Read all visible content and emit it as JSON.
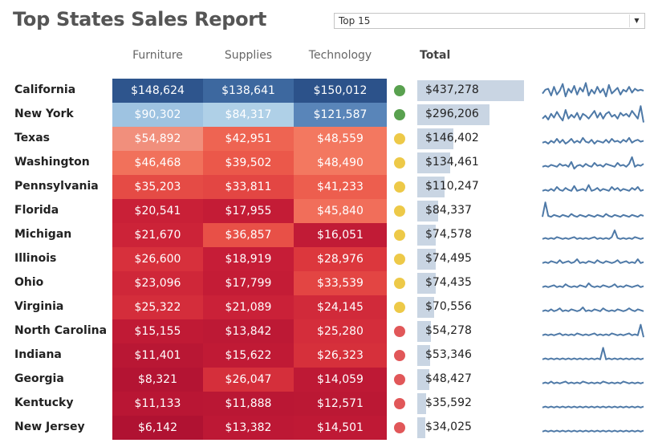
{
  "title": "Top States Sales Report",
  "filter": {
    "selected": "Top 15"
  },
  "headers": {
    "furniture": "Furniture",
    "supplies": "Supplies",
    "technology": "Technology",
    "total": "Total"
  },
  "colors": {
    "title": "#555555",
    "bar": "#c9d5e3",
    "spark": "#4e79a7",
    "dot_green": "#59a14f",
    "dot_yellow": "#edc948",
    "dot_red": "#e15759"
  },
  "rows": [
    {
      "state": "California",
      "furniture": "$148,624",
      "supplies": "$138,641",
      "technology": "$150,012",
      "total": "$437,278",
      "status": "green"
    },
    {
      "state": "New York",
      "furniture": "$90,302",
      "supplies": "$84,317",
      "technology": "$121,587",
      "total": "$296,206",
      "status": "green"
    },
    {
      "state": "Texas",
      "furniture": "$54,892",
      "supplies": "$42,951",
      "technology": "$48,559",
      "total": "$146,402",
      "status": "yellow"
    },
    {
      "state": "Washington",
      "furniture": "$46,468",
      "supplies": "$39,502",
      "technology": "$48,490",
      "total": "$134,461",
      "status": "yellow"
    },
    {
      "state": "Pennsylvania",
      "furniture": "$35,203",
      "supplies": "$33,811",
      "technology": "$41,233",
      "total": "$110,247",
      "status": "yellow"
    },
    {
      "state": "Florida",
      "furniture": "$20,541",
      "supplies": "$17,955",
      "technology": "$45,840",
      "total": "$84,337",
      "status": "yellow"
    },
    {
      "state": "Michigan",
      "furniture": "$21,670",
      "supplies": "$36,857",
      "technology": "$16,051",
      "total": "$74,578",
      "status": "yellow"
    },
    {
      "state": "Illinois",
      "furniture": "$26,600",
      "supplies": "$18,919",
      "technology": "$28,976",
      "total": "$74,495",
      "status": "yellow"
    },
    {
      "state": "Ohio",
      "furniture": "$23,096",
      "supplies": "$17,799",
      "technology": "$33,539",
      "total": "$74,435",
      "status": "yellow"
    },
    {
      "state": "Virginia",
      "furniture": "$25,322",
      "supplies": "$21,089",
      "technology": "$24,145",
      "total": "$70,556",
      "status": "yellow"
    },
    {
      "state": "North Carolina",
      "furniture": "$15,155",
      "supplies": "$13,842",
      "technology": "$25,280",
      "total": "$54,278",
      "status": "red"
    },
    {
      "state": "Indiana",
      "furniture": "$11,401",
      "supplies": "$15,622",
      "technology": "$26,323",
      "total": "$53,346",
      "status": "red"
    },
    {
      "state": "Georgia",
      "furniture": "$8,321",
      "supplies": "$26,047",
      "technology": "$14,059",
      "total": "$48,427",
      "status": "red"
    },
    {
      "state": "Kentucky",
      "furniture": "$11,133",
      "supplies": "$11,888",
      "technology": "$12,571",
      "total": "$35,592",
      "status": "red"
    },
    {
      "state": "New Jersey",
      "furniture": "$6,142",
      "supplies": "$13,382",
      "technology": "$14,501",
      "total": "$34,025",
      "status": "red"
    }
  ],
  "chart_data": {
    "type": "table",
    "title": "Top States Sales Report",
    "categories": [
      "California",
      "New York",
      "Texas",
      "Washington",
      "Pennsylvania",
      "Florida",
      "Michigan",
      "Illinois",
      "Ohio",
      "Virginia",
      "North Carolina",
      "Indiana",
      "Georgia",
      "Kentucky",
      "New Jersey"
    ],
    "series": [
      {
        "name": "Furniture",
        "values": [
          148624,
          90302,
          54892,
          46468,
          35203,
          20541,
          21670,
          26600,
          23096,
          25322,
          15155,
          11401,
          8321,
          11133,
          6142
        ]
      },
      {
        "name": "Supplies",
        "values": [
          138641,
          84317,
          42951,
          39502,
          33811,
          17955,
          36857,
          18919,
          17799,
          21089,
          13842,
          15622,
          26047,
          11888,
          13382
        ]
      },
      {
        "name": "Technology",
        "values": [
          150012,
          121587,
          48559,
          48490,
          41233,
          45840,
          16051,
          28976,
          33539,
          24145,
          25280,
          26323,
          14059,
          12571,
          14501
        ]
      },
      {
        "name": "Total",
        "values": [
          437278,
          296206,
          146402,
          134461,
          110247,
          84337,
          74578,
          74495,
          74435,
          70556,
          54278,
          53346,
          48427,
          35592,
          34025
        ]
      }
    ],
    "sparklines": [
      [
        0.35,
        0.55,
        0.6,
        0.25,
        0.7,
        0.3,
        0.5,
        0.85,
        0.2,
        0.6,
        0.4,
        0.75,
        0.3,
        0.65,
        0.45,
        0.9,
        0.25,
        0.55,
        0.35,
        0.7,
        0.4,
        0.6,
        0.2,
        0.8,
        0.35,
        0.5,
        0.65,
        0.3,
        0.55,
        0.45,
        0.7,
        0.4,
        0.6,
        0.5,
        0.55,
        0.5
      ],
      [
        0.3,
        0.45,
        0.25,
        0.55,
        0.35,
        0.65,
        0.4,
        0.2,
        0.75,
        0.3,
        0.5,
        0.35,
        0.6,
        0.25,
        0.55,
        0.45,
        0.3,
        0.5,
        0.7,
        0.35,
        0.6,
        0.3,
        0.55,
        0.65,
        0.4,
        0.5,
        0.3,
        0.6,
        0.45,
        0.55,
        0.4,
        0.7,
        0.5,
        0.3,
        0.95,
        0.1
      ],
      [
        0.3,
        0.35,
        0.25,
        0.4,
        0.3,
        0.5,
        0.3,
        0.45,
        0.25,
        0.35,
        0.5,
        0.3,
        0.4,
        0.3,
        0.55,
        0.35,
        0.3,
        0.45,
        0.25,
        0.4,
        0.35,
        0.3,
        0.45,
        0.3,
        0.5,
        0.35,
        0.4,
        0.3,
        0.45,
        0.35,
        0.55,
        0.3,
        0.4,
        0.45,
        0.35,
        0.4
      ],
      [
        0.3,
        0.35,
        0.3,
        0.4,
        0.35,
        0.3,
        0.45,
        0.35,
        0.4,
        0.3,
        0.55,
        0.2,
        0.35,
        0.4,
        0.3,
        0.45,
        0.35,
        0.3,
        0.5,
        0.35,
        0.4,
        0.3,
        0.45,
        0.4,
        0.35,
        0.3,
        0.5,
        0.35,
        0.4,
        0.3,
        0.45,
        0.8,
        0.3,
        0.4,
        0.35,
        0.45
      ],
      [
        0.3,
        0.35,
        0.3,
        0.4,
        0.3,
        0.5,
        0.35,
        0.3,
        0.45,
        0.35,
        0.3,
        0.55,
        0.3,
        0.35,
        0.4,
        0.3,
        0.6,
        0.3,
        0.35,
        0.45,
        0.3,
        0.4,
        0.35,
        0.3,
        0.5,
        0.35,
        0.45,
        0.3,
        0.4,
        0.35,
        0.3,
        0.45,
        0.35,
        0.5,
        0.3,
        0.35
      ],
      [
        0.2,
        0.95,
        0.25,
        0.2,
        0.3,
        0.25,
        0.2,
        0.3,
        0.25,
        0.2,
        0.35,
        0.25,
        0.2,
        0.3,
        0.25,
        0.2,
        0.3,
        0.25,
        0.2,
        0.3,
        0.25,
        0.2,
        0.35,
        0.25,
        0.2,
        0.3,
        0.25,
        0.2,
        0.3,
        0.25,
        0.2,
        0.3,
        0.25,
        0.2,
        0.3,
        0.25
      ],
      [
        0.3,
        0.35,
        0.3,
        0.35,
        0.3,
        0.4,
        0.35,
        0.3,
        0.35,
        0.3,
        0.35,
        0.4,
        0.3,
        0.35,
        0.3,
        0.35,
        0.3,
        0.35,
        0.4,
        0.3,
        0.35,
        0.3,
        0.35,
        0.3,
        0.4,
        0.75,
        0.35,
        0.3,
        0.35,
        0.3,
        0.35,
        0.3,
        0.4,
        0.35,
        0.3,
        0.35
      ],
      [
        0.3,
        0.35,
        0.3,
        0.4,
        0.35,
        0.3,
        0.45,
        0.3,
        0.35,
        0.4,
        0.3,
        0.35,
        0.5,
        0.3,
        0.35,
        0.3,
        0.4,
        0.35,
        0.3,
        0.45,
        0.35,
        0.3,
        0.4,
        0.35,
        0.3,
        0.35,
        0.45,
        0.3,
        0.35,
        0.4,
        0.3,
        0.35,
        0.3,
        0.5,
        0.3,
        0.35
      ],
      [
        0.3,
        0.35,
        0.3,
        0.35,
        0.4,
        0.3,
        0.35,
        0.3,
        0.45,
        0.35,
        0.3,
        0.35,
        0.3,
        0.4,
        0.35,
        0.3,
        0.5,
        0.35,
        0.3,
        0.35,
        0.3,
        0.4,
        0.35,
        0.3,
        0.35,
        0.45,
        0.3,
        0.35,
        0.3,
        0.4,
        0.35,
        0.3,
        0.35,
        0.4,
        0.3,
        0.35
      ],
      [
        0.3,
        0.35,
        0.3,
        0.4,
        0.3,
        0.35,
        0.45,
        0.3,
        0.35,
        0.3,
        0.4,
        0.35,
        0.3,
        0.35,
        0.5,
        0.3,
        0.35,
        0.3,
        0.4,
        0.35,
        0.3,
        0.45,
        0.35,
        0.3,
        0.35,
        0.3,
        0.4,
        0.35,
        0.3,
        0.35,
        0.45,
        0.35,
        0.3,
        0.4,
        0.35,
        0.3
      ],
      [
        0.3,
        0.35,
        0.3,
        0.35,
        0.3,
        0.35,
        0.4,
        0.3,
        0.35,
        0.3,
        0.35,
        0.3,
        0.4,
        0.35,
        0.3,
        0.35,
        0.3,
        0.35,
        0.4,
        0.3,
        0.35,
        0.3,
        0.35,
        0.3,
        0.4,
        0.35,
        0.3,
        0.35,
        0.3,
        0.35,
        0.4,
        0.3,
        0.35,
        0.3,
        0.85,
        0.2
      ],
      [
        0.3,
        0.35,
        0.3,
        0.35,
        0.3,
        0.35,
        0.3,
        0.35,
        0.3,
        0.35,
        0.3,
        0.35,
        0.3,
        0.35,
        0.3,
        0.35,
        0.3,
        0.35,
        0.3,
        0.35,
        0.3,
        0.9,
        0.3,
        0.35,
        0.3,
        0.35,
        0.3,
        0.35,
        0.3,
        0.35,
        0.3,
        0.35,
        0.3,
        0.35,
        0.3,
        0.35
      ],
      [
        0.3,
        0.35,
        0.3,
        0.4,
        0.3,
        0.35,
        0.3,
        0.35,
        0.4,
        0.3,
        0.35,
        0.3,
        0.35,
        0.3,
        0.4,
        0.35,
        0.3,
        0.35,
        0.3,
        0.35,
        0.3,
        0.4,
        0.35,
        0.3,
        0.35,
        0.3,
        0.35,
        0.3,
        0.4,
        0.35,
        0.3,
        0.35,
        0.3,
        0.35,
        0.3,
        0.35
      ],
      [
        0.3,
        0.35,
        0.3,
        0.35,
        0.3,
        0.35,
        0.3,
        0.35,
        0.3,
        0.35,
        0.3,
        0.35,
        0.3,
        0.35,
        0.3,
        0.35,
        0.3,
        0.35,
        0.3,
        0.35,
        0.3,
        0.35,
        0.3,
        0.35,
        0.3,
        0.35,
        0.3,
        0.35,
        0.3,
        0.35,
        0.3,
        0.35,
        0.3,
        0.35,
        0.3,
        0.35
      ],
      [
        0.3,
        0.35,
        0.3,
        0.35,
        0.3,
        0.35,
        0.3,
        0.35,
        0.3,
        0.35,
        0.3,
        0.35,
        0.3,
        0.35,
        0.3,
        0.35,
        0.3,
        0.35,
        0.3,
        0.35,
        0.3,
        0.35,
        0.3,
        0.35,
        0.3,
        0.35,
        0.3,
        0.35,
        0.3,
        0.35,
        0.3,
        0.35,
        0.3,
        0.35,
        0.3,
        0.35
      ]
    ]
  }
}
